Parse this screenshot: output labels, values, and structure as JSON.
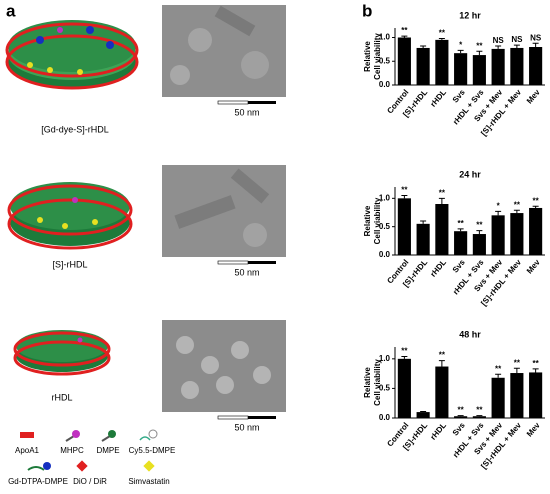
{
  "panel_a": {
    "letter": "a",
    "particles": [
      "[Gd-dye-S]-rHDL",
      "[S]-rHDL",
      "rHDL"
    ],
    "scale_bars": [
      "50 nm",
      "50 nm",
      "50 nm"
    ],
    "legend": [
      "ApoA1",
      "MHPC",
      "DMPE",
      "Cy5.5-DMPE",
      "Gd-DTPA-DMPE",
      "DiO / DiR",
      "Simvastatin"
    ]
  },
  "panel_b": {
    "letter": "b"
  },
  "chart_data": [
    {
      "type": "bar",
      "title": "12 hr",
      "y_label": [
        "Relative",
        "Cell viability"
      ],
      "categories": [
        "Control",
        "[S]-rHDL",
        "rHDL",
        "Svs",
        "rHDL + Svs",
        "Svs + Mev",
        "[S]-rHDL + Mev",
        "Mev"
      ],
      "series": [
        {
          "color": "#000000",
          "values": [
            1.0,
            0.78,
            0.95,
            0.67,
            0.63,
            0.76,
            0.78,
            0.8
          ],
          "errors": [
            0.03,
            0.04,
            0.03,
            0.06,
            0.08,
            0.06,
            0.06,
            0.08
          ]
        }
      ],
      "annotations": [
        "**",
        null,
        "**",
        "*",
        "**",
        "NS",
        "NS",
        "NS"
      ],
      "ylim": [
        0,
        1.2
      ],
      "yticks": [
        {
          "value": 0,
          "label": "0.0"
        },
        {
          "value": 0.5,
          "label": "0.5"
        },
        {
          "value": 1.0,
          "label": "1.0"
        }
      ]
    },
    {
      "type": "bar",
      "title": "24 hr",
      "y_label": [
        "Relative",
        "Cell viability"
      ],
      "categories": [
        "Control",
        "[S]-rHDL",
        "rHDL",
        "Svs",
        "rHDL + Svs",
        "Svs + Mev",
        "[S]-rHDL + Mev",
        "Mev"
      ],
      "series": [
        {
          "color": "#000000",
          "values": [
            1.0,
            0.55,
            0.9,
            0.42,
            0.37,
            0.7,
            0.74,
            0.83
          ],
          "errors": [
            0.05,
            0.05,
            0.1,
            0.04,
            0.06,
            0.07,
            0.05,
            0.03
          ]
        }
      ],
      "annotations": [
        "**",
        null,
        "**",
        "**",
        "**",
        "*",
        "**",
        "**"
      ],
      "ylim": [
        0,
        1.2
      ],
      "yticks": [
        {
          "value": 0,
          "label": "0.0"
        },
        {
          "value": 0.5,
          "label": "0.5"
        },
        {
          "value": 1.0,
          "label": "1.0"
        }
      ]
    },
    {
      "type": "bar",
      "title": "48 hr",
      "y_label": [
        "Relative",
        "Cell viability"
      ],
      "categories": [
        "Control",
        "[S]-rHDL",
        "rHDL",
        "Svs",
        "rHDL + Svs",
        "Svs + Mev",
        "[S]-rHDL + Mev",
        "Mev"
      ],
      "series": [
        {
          "color": "#000000",
          "values": [
            1.0,
            0.1,
            0.87,
            0.03,
            0.03,
            0.68,
            0.76,
            0.77
          ],
          "errors": [
            0.04,
            0.01,
            0.1,
            0.01,
            0.01,
            0.06,
            0.08,
            0.06
          ]
        }
      ],
      "annotations": [
        "**",
        null,
        "**",
        "**",
        "**",
        "**",
        "**",
        "**"
      ],
      "ylim": [
        0,
        1.2
      ],
      "yticks": [
        {
          "value": 0,
          "label": "0.0"
        },
        {
          "value": 0.5,
          "label": "0.5"
        },
        {
          "value": 1.0,
          "label": "1.0"
        }
      ]
    }
  ]
}
